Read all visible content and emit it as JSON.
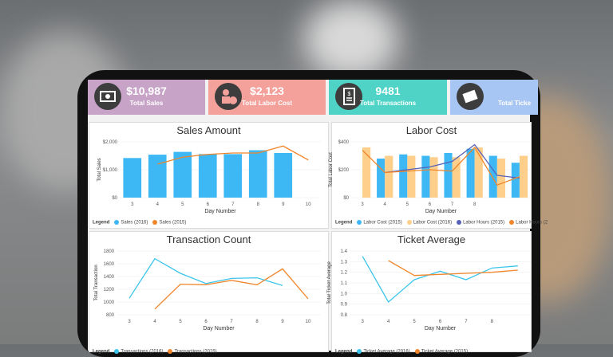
{
  "kpis": [
    {
      "value": "$10,987",
      "label": "Total Sales",
      "color": "#c7a3c7",
      "icon": "money-icon"
    },
    {
      "value": "$2,123",
      "label": "Total Labor Cost",
      "color": "#f4a09b",
      "icon": "labor-cost-icon"
    },
    {
      "value": "9481",
      "label": "Total Transactions",
      "color": "#4fd3c7",
      "icon": "receipt-icon"
    },
    {
      "value": "",
      "label": "Total Ticke",
      "color": "#a8c6f4",
      "icon": "ticket-icon"
    }
  ],
  "charts": {
    "sales": {
      "title": "Sales Amount",
      "xlabel": "Day Number",
      "ylabel": "Total Sales",
      "legend_title": "Legend",
      "chart_data": {
        "type": "bar",
        "x": [
          3,
          4,
          5,
          6,
          7,
          8,
          9,
          10
        ],
        "xticks": [
          "3",
          "4",
          "5",
          "6",
          "7",
          "8",
          "9",
          "10"
        ],
        "yticks": [
          "$0",
          "$1,000",
          "$2,000"
        ],
        "ylim": [
          0,
          2000
        ],
        "series": [
          {
            "name": "Sales (2016)",
            "kind": "bar",
            "color": "#3db8f5",
            "values": [
              1420,
              1540,
              1640,
              1560,
              1560,
              1700,
              1600,
              null
            ]
          },
          {
            "name": "Sales (2015)",
            "kind": "line",
            "color": "#f0862b",
            "values": [
              null,
              1200,
              1450,
              1550,
              1600,
              1600,
              1850,
              1350
            ]
          }
        ]
      }
    },
    "labor": {
      "title": "Labor Cost",
      "xlabel": "Day Number",
      "ylabel": "Total Labor Cost",
      "legend_title": "Legend",
      "chart_data": {
        "type": "bar",
        "x": [
          3,
          4,
          5,
          6,
          7,
          8,
          9,
          10
        ],
        "xticks": [
          "3",
          "4",
          "5",
          "6",
          "7",
          "8"
        ],
        "yticks": [
          "$0",
          "$200",
          "$400"
        ],
        "ylim": [
          0,
          400
        ],
        "series": [
          {
            "name": "Labor Cost (2015)",
            "kind": "bar",
            "color": "#3db8f5",
            "values": [
              null,
              280,
              310,
              300,
              320,
              350,
              300,
              250
            ]
          },
          {
            "name": "Labor Cost (2016)",
            "kind": "bar",
            "color": "#fdcf8a",
            "values": [
              360,
              300,
              300,
              290,
              290,
              360,
              280,
              300
            ]
          },
          {
            "name": "Labor Hours (2015)",
            "kind": "line",
            "color": "#5561b8",
            "values": [
              null,
              180,
              200,
              220,
              260,
              380,
              160,
              140
            ]
          },
          {
            "name": "Labor Hours (2",
            "kind": "line",
            "color": "#f0862b",
            "values": [
              340,
              180,
              190,
              200,
              190,
              360,
              90,
              150
            ]
          }
        ]
      }
    },
    "transactions": {
      "title": "Transaction Count",
      "xlabel": "Day Number",
      "ylabel": "Total Transaction",
      "legend_title": "Legend",
      "chart_data": {
        "type": "line",
        "x": [
          3,
          4,
          5,
          6,
          7,
          8,
          9,
          10
        ],
        "xticks": [
          "3",
          "4",
          "5",
          "6",
          "7",
          "8",
          "9",
          "10"
        ],
        "yticks": [
          "800",
          "1000",
          "1200",
          "1400",
          "1600",
          "1800"
        ],
        "ylim": [
          800,
          1800
        ],
        "series": [
          {
            "name": "Transactions (2016)",
            "color": "#3cc5ec",
            "values": [
              1060,
              1680,
              1450,
              1290,
              1370,
              1380,
              1260,
              null
            ]
          },
          {
            "name": "Transactions (2015)",
            "color": "#f0862b",
            "values": [
              null,
              890,
              1280,
              1270,
              1340,
              1270,
              1520,
              1050
            ]
          }
        ]
      }
    },
    "ticket": {
      "title": "Ticket Average",
      "xlabel": "Day Number",
      "ylabel": "Total Ticket Average",
      "legend_title": "Legend",
      "chart_data": {
        "type": "line",
        "x": [
          3,
          4,
          5,
          6,
          7,
          8,
          9
        ],
        "xticks": [
          "3",
          "4",
          "5",
          "6",
          "7",
          "8"
        ],
        "yticks": [
          "0.8",
          "0.9",
          "1.0",
          "1.1",
          "1.2",
          "1.3",
          "1.4"
        ],
        "ylim": [
          0.8,
          1.4
        ],
        "series": [
          {
            "name": "Ticket Average (2016)",
            "color": "#3cc5ec",
            "values": [
              1.35,
              0.92,
              1.13,
              1.21,
              1.13,
              1.24,
              1.26
            ]
          },
          {
            "name": "Ticket Average (2015)",
            "color": "#f0862b",
            "values": [
              null,
              1.31,
              1.17,
              1.18,
              1.19,
              1.2,
              1.22
            ]
          }
        ]
      }
    }
  }
}
